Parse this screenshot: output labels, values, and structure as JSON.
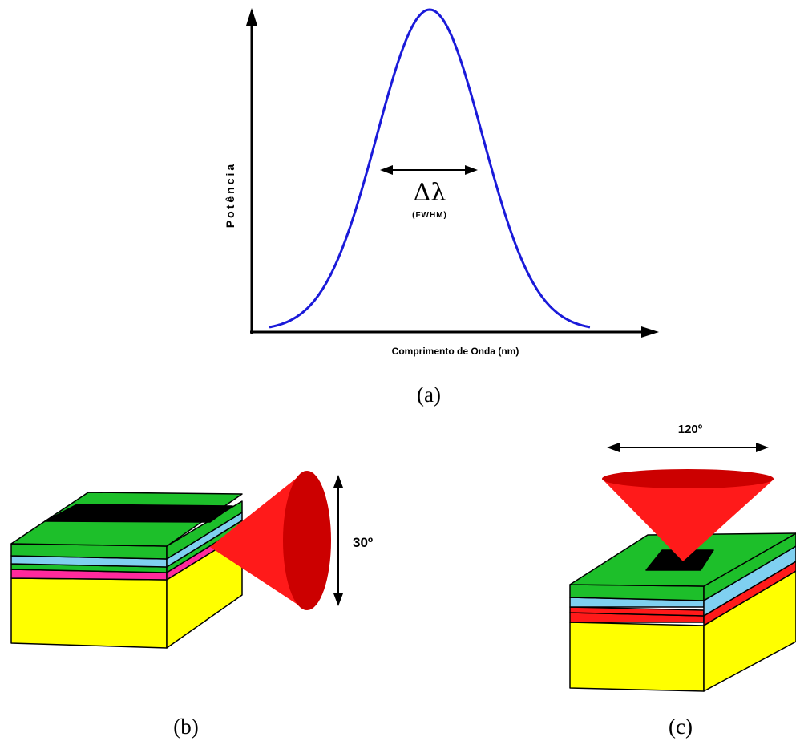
{
  "panel_a": {
    "ylabel": "Potência",
    "xlabel": "Comprimento de Onda (nm)",
    "width_symbol": "Δλ",
    "width_label": "(FWHM)",
    "caption": "(a)",
    "curve_color": "#1a1ad9"
  },
  "panel_b": {
    "angle": "30º",
    "caption": "(b)"
  },
  "panel_c": {
    "angle": "120º",
    "caption": "(c)"
  },
  "colors": {
    "substrate": "#ffff00",
    "top_layer": "#1dbf2a",
    "cladding": "#7fd0f0",
    "active_b": "#ff2a9c",
    "active_c": "#ff1a1a",
    "contact": "#000000",
    "beam": "#ff1a1a",
    "beam_shade": "#cc0000"
  }
}
